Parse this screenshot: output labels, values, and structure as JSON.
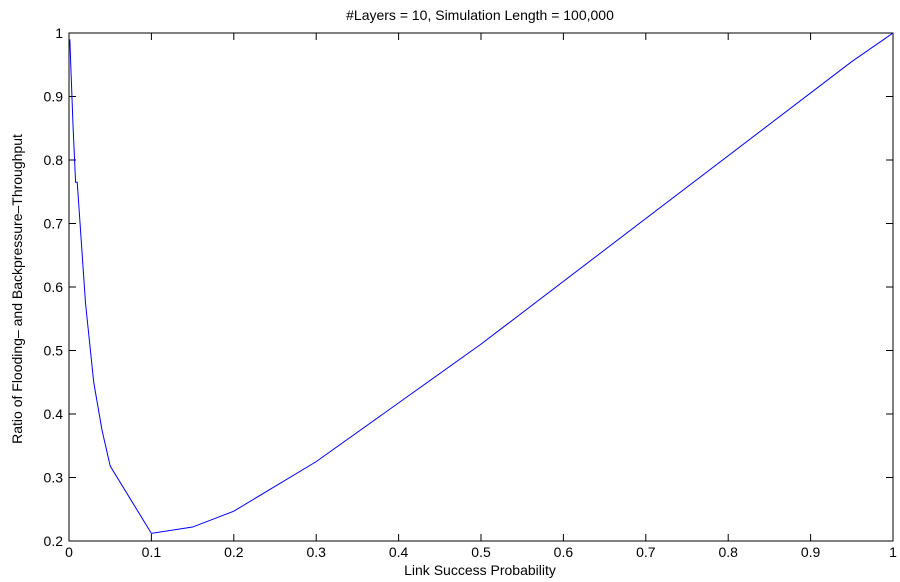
{
  "chart_data": {
    "type": "line",
    "title": "#Layers = 10, Simulation Length = 100,000",
    "xlabel": "Link Success Probability",
    "ylabel": "Ratio of Flooding– and Backpressure–Throughput",
    "xlim": [
      0,
      1
    ],
    "ylim": [
      0.2,
      1
    ],
    "xticks": [
      0,
      0.1,
      0.2,
      0.3,
      0.4,
      0.5,
      0.6,
      0.7,
      0.8,
      0.9,
      1
    ],
    "xtick_labels": [
      "0",
      "0.1",
      "0.2",
      "0.3",
      "0.4",
      "0.5",
      "0.6",
      "0.7",
      "0.8",
      "0.9",
      "1"
    ],
    "yticks": [
      0.2,
      0.3,
      0.4,
      0.5,
      0.6,
      0.7,
      0.8,
      0.9,
      1
    ],
    "ytick_labels": [
      "0.2",
      "0.3",
      "0.4",
      "0.5",
      "0.6",
      "0.7",
      "0.8",
      "0.9",
      "1"
    ],
    "grid": false,
    "line_color": "#0000ff",
    "series": [
      {
        "x": [
          0.001,
          0.005,
          0.008,
          0.01,
          0.02,
          0.03,
          0.04,
          0.05,
          0.1,
          0.15,
          0.2,
          0.3,
          0.5,
          0.95,
          1.0
        ],
        "y": [
          0.99,
          0.85,
          0.765,
          0.765,
          0.575,
          0.45,
          0.375,
          0.318,
          0.212,
          0.222,
          0.247,
          0.325,
          0.51,
          0.955,
          1.0
        ]
      }
    ]
  }
}
